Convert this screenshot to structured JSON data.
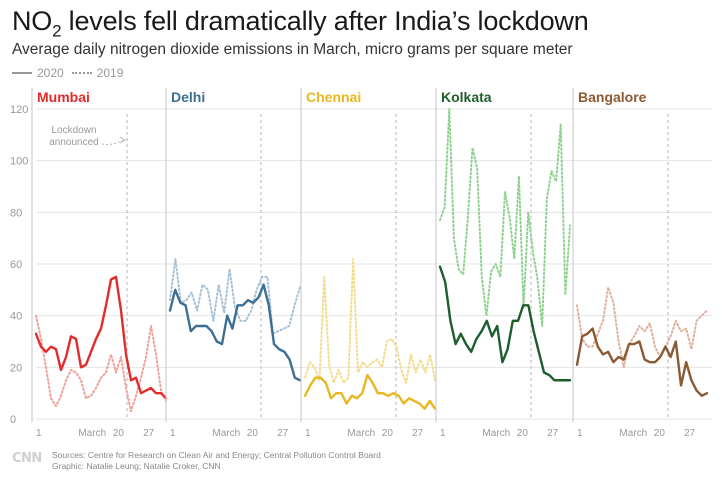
{
  "title": {
    "main": "NO",
    "subscript": "2",
    "rest": " levels fell dramatically after India’s lockdown"
  },
  "subtitle": "Average daily nitrogen dioxide emissions in March, micro grams per square meter",
  "legend": {
    "solid": "2020",
    "dotted": "2019"
  },
  "annotation": {
    "line1": "Lockdown",
    "line2": "announced"
  },
  "source": {
    "line1": "Sources: Centre for Research on Clean Air and Energy; Central Pollution Control Board",
    "line2": "Graphic: Natalie Leung; Natalie Croker, CNN"
  },
  "logo": "CNN",
  "chart_data": {
    "type": "line",
    "ylim": [
      0,
      120
    ],
    "yticks": [
      0,
      20,
      40,
      60,
      80,
      100,
      120
    ],
    "xlim": [
      1,
      31
    ],
    "xticks": [
      {
        "x": 1,
        "label": "1"
      },
      {
        "x": 14,
        "label": "March"
      },
      {
        "x": 20,
        "label": "20"
      },
      {
        "x": 27,
        "label": "27"
      }
    ],
    "lockdown_day": 22,
    "panels": [
      {
        "city": "Mumbai",
        "color": "#e32b2b",
        "dotted_color": "#f0a09a",
        "y2020": [
          33,
          28,
          26,
          28,
          27,
          19,
          24,
          32,
          31,
          20,
          21,
          26,
          31,
          35,
          44,
          54,
          55,
          42,
          25,
          15,
          16,
          10,
          11,
          12,
          10,
          10,
          8
        ],
        "y2019": [
          40,
          31,
          20,
          8,
          5,
          9,
          15,
          19,
          18,
          15,
          8,
          9,
          12,
          16,
          18,
          25,
          18,
          24,
          12,
          3,
          9,
          16,
          24,
          36,
          25,
          11,
          7
        ]
      },
      {
        "city": "Delhi",
        "color": "#3d6f94",
        "dotted_color": "#a9c1d6",
        "y2020": [
          42,
          50,
          45,
          44,
          34,
          36,
          36,
          36,
          34,
          30,
          29,
          40,
          35,
          44,
          44,
          46,
          45,
          47,
          52,
          44,
          29,
          27,
          26,
          23,
          16,
          15
        ],
        "y2019": [
          46,
          62,
          45,
          46,
          49,
          42,
          52,
          50,
          38,
          52,
          41,
          58,
          43,
          38,
          38,
          42,
          50,
          55,
          55,
          33,
          34,
          35,
          36,
          44,
          51
        ]
      },
      {
        "city": "Chennai",
        "color": "#e8b81e",
        "dotted_color": "#f3dc8c",
        "y2020": [
          9,
          13,
          16,
          16,
          14,
          8,
          10,
          10,
          6,
          9,
          8,
          10,
          17,
          14,
          10,
          10,
          9,
          10,
          9,
          6,
          8,
          7,
          6,
          4,
          7,
          4
        ],
        "y2019": [
          16,
          22,
          20,
          15,
          55,
          21,
          14,
          19,
          14,
          16,
          62,
          18,
          22,
          20,
          22,
          23,
          20,
          30,
          31,
          28,
          19,
          14,
          25,
          18,
          23,
          18,
          25,
          15
        ]
      },
      {
        "city": "Kolkata",
        "color": "#1e5e2e",
        "dotted_color": "#8fd18f",
        "y2020": [
          59,
          53,
          38,
          29,
          33,
          29,
          26,
          31,
          34,
          38,
          32,
          36,
          22,
          27,
          38,
          38,
          44,
          44,
          34,
          26,
          18,
          17,
          15,
          15,
          15,
          15
        ],
        "y2019": [
          77,
          82,
          120,
          70,
          58,
          56,
          78,
          105,
          97,
          55,
          40,
          57,
          60,
          55,
          88,
          78,
          62,
          94,
          43,
          80,
          65,
          54,
          36,
          85,
          96,
          92,
          114,
          48,
          75
        ]
      },
      {
        "city": "Bangalore",
        "color": "#8c5a32",
        "dotted_color": "#e0b29a",
        "y2020": [
          21,
          32,
          33,
          35,
          28,
          25,
          26,
          22,
          24,
          23,
          29,
          29,
          30,
          23,
          22,
          22,
          24,
          28,
          24,
          30,
          13,
          22,
          15,
          11,
          9,
          10
        ],
        "y2019": [
          44,
          31,
          28,
          28,
          33,
          38,
          51,
          45,
          30,
          20,
          29,
          32,
          36,
          34,
          37,
          28,
          24,
          28,
          32,
          38,
          34,
          35,
          27,
          38,
          40,
          42
        ]
      }
    ]
  }
}
